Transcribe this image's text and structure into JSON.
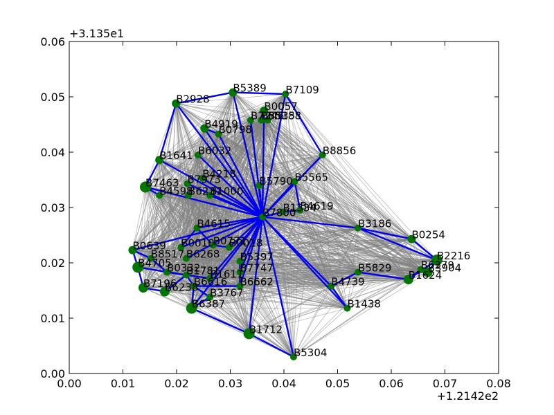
{
  "chart_data": {
    "type": "scatter",
    "x_offset_label": "+1.2142e2",
    "y_offset_label": "+3.135e1",
    "xlim": [
      0.0,
      0.08
    ],
    "ylim": [
      0.0,
      0.06
    ],
    "x_ticks": [
      "0.00",
      "0.01",
      "0.02",
      "0.03",
      "0.04",
      "0.05",
      "0.06",
      "0.07",
      "0.08"
    ],
    "y_ticks": [
      "0.00",
      "0.01",
      "0.02",
      "0.03",
      "0.04",
      "0.05",
      "0.06"
    ],
    "x_tick_values": [
      0.0,
      0.01,
      0.02,
      0.03,
      0.04,
      0.05,
      0.06,
      0.07,
      0.08
    ],
    "y_tick_values": [
      0.0,
      0.01,
      0.02,
      0.03,
      0.04,
      0.05,
      0.06
    ],
    "grid": false,
    "colors": {
      "nodes": "#007700",
      "route": "#0000ee",
      "background_edges": "#808080"
    },
    "hub": "B7800",
    "nodes": [
      {
        "id": "B5389",
        "x": 0.0305,
        "y": 0.0508,
        "size": 6
      },
      {
        "id": "B7109",
        "x": 0.0403,
        "y": 0.0505,
        "size": 5
      },
      {
        "id": "B2928",
        "x": 0.0199,
        "y": 0.0488,
        "size": 6
      },
      {
        "id": "B0057",
        "x": 0.0363,
        "y": 0.0475,
        "size": 6
      },
      {
        "id": "B7246",
        "x": 0.0338,
        "y": 0.0458,
        "size": 5
      },
      {
        "id": "B5535",
        "x": 0.0358,
        "y": 0.0458,
        "size": 5
      },
      {
        "id": "B5188",
        "x": 0.037,
        "y": 0.0458,
        "size": 5
      },
      {
        "id": "B4919",
        "x": 0.0252,
        "y": 0.0443,
        "size": 6
      },
      {
        "id": "B0798",
        "x": 0.0278,
        "y": 0.0433,
        "size": 5
      },
      {
        "id": "B8856",
        "x": 0.0472,
        "y": 0.0395,
        "size": 5
      },
      {
        "id": "B6032",
        "x": 0.024,
        "y": 0.0395,
        "size": 5
      },
      {
        "id": "B1641",
        "x": 0.0168,
        "y": 0.0386,
        "size": 6
      },
      {
        "id": "B4218",
        "x": 0.0248,
        "y": 0.0353,
        "size": 5
      },
      {
        "id": "B7973",
        "x": 0.022,
        "y": 0.0343,
        "size": 5
      },
      {
        "id": "B5565",
        "x": 0.042,
        "y": 0.0347,
        "size": 5
      },
      {
        "id": "B5790",
        "x": 0.0354,
        "y": 0.034,
        "size": 5
      },
      {
        "id": "B7463",
        "x": 0.0142,
        "y": 0.0337,
        "size": 8
      },
      {
        "id": "B6237",
        "x": 0.0222,
        "y": 0.0322,
        "size": 5
      },
      {
        "id": "B1000",
        "x": 0.0262,
        "y": 0.0322,
        "size": 5
      },
      {
        "id": "B4598",
        "x": 0.0168,
        "y": 0.0322,
        "size": 5
      },
      {
        "id": "B4619",
        "x": 0.043,
        "y": 0.0295,
        "size": 5
      },
      {
        "id": "B1334",
        "x": 0.0398,
        "y": 0.0292,
        "size": 5
      },
      {
        "id": "B7800",
        "x": 0.036,
        "y": 0.0283,
        "size": 5
      },
      {
        "id": "B3186",
        "x": 0.0538,
        "y": 0.0263,
        "size": 5
      },
      {
        "id": "B4615",
        "x": 0.0238,
        "y": 0.0263,
        "size": 5
      },
      {
        "id": "B0254",
        "x": 0.0638,
        "y": 0.0243,
        "size": 6
      },
      {
        "id": "B0639",
        "x": 0.0118,
        "y": 0.0223,
        "size": 6
      },
      {
        "id": "B0010",
        "x": 0.0208,
        "y": 0.0228,
        "size": 5
      },
      {
        "id": "B0771",
        "x": 0.0268,
        "y": 0.0232,
        "size": 5
      },
      {
        "id": "B0018",
        "x": 0.0298,
        "y": 0.0228,
        "size": 5
      },
      {
        "id": "B8517",
        "x": 0.0152,
        "y": 0.0208,
        "size": 5
      },
      {
        "id": "B6268",
        "x": 0.0218,
        "y": 0.0208,
        "size": 5
      },
      {
        "id": "B5397",
        "x": 0.0318,
        "y": 0.0203,
        "size": 5
      },
      {
        "id": "B2216",
        "x": 0.0685,
        "y": 0.0205,
        "size": 8
      },
      {
        "id": "B4705",
        "x": 0.0128,
        "y": 0.0192,
        "size": 8
      },
      {
        "id": "B6279",
        "x": 0.0655,
        "y": 0.0188,
        "size": 5
      },
      {
        "id": "B3904",
        "x": 0.0668,
        "y": 0.0183,
        "size": 7
      },
      {
        "id": "B5829",
        "x": 0.0538,
        "y": 0.0183,
        "size": 5
      },
      {
        "id": "B0332",
        "x": 0.0182,
        "y": 0.0183,
        "size": 5
      },
      {
        "id": "B1781",
        "x": 0.0218,
        "y": 0.0178,
        "size": 5
      },
      {
        "id": "B7747",
        "x": 0.0318,
        "y": 0.0183,
        "size": 5
      },
      {
        "id": "B1611",
        "x": 0.0262,
        "y": 0.0172,
        "size": 5
      },
      {
        "id": "B1624",
        "x": 0.0632,
        "y": 0.017,
        "size": 7
      },
      {
        "id": "B4739",
        "x": 0.0488,
        "y": 0.0158,
        "size": 5
      },
      {
        "id": "B7196",
        "x": 0.0138,
        "y": 0.0155,
        "size": 7
      },
      {
        "id": "B6616",
        "x": 0.0232,
        "y": 0.0158,
        "size": 5
      },
      {
        "id": "B6662",
        "x": 0.0318,
        "y": 0.0158,
        "size": 5
      },
      {
        "id": "B6238",
        "x": 0.0178,
        "y": 0.0148,
        "size": 7
      },
      {
        "id": "B3767",
        "x": 0.0262,
        "y": 0.0138,
        "size": 5
      },
      {
        "id": "B6387",
        "x": 0.0228,
        "y": 0.0118,
        "size": 8
      },
      {
        "id": "B1438",
        "x": 0.0518,
        "y": 0.0118,
        "size": 5
      },
      {
        "id": "B1712",
        "x": 0.0335,
        "y": 0.0072,
        "size": 8
      },
      {
        "id": "B5304",
        "x": 0.0418,
        "y": 0.003,
        "size": 5
      }
    ],
    "route_edges": [
      [
        "B7800",
        "B5389"
      ],
      [
        "B7800",
        "B7109"
      ],
      [
        "B7800",
        "B2928"
      ],
      [
        "B7800",
        "B0057"
      ],
      [
        "B7800",
        "B7246"
      ],
      [
        "B7800",
        "B4919"
      ],
      [
        "B7800",
        "B0798"
      ],
      [
        "B7800",
        "B8856"
      ],
      [
        "B7800",
        "B6032"
      ],
      [
        "B7800",
        "B1641"
      ],
      [
        "B7800",
        "B4218"
      ],
      [
        "B7800",
        "B7973"
      ],
      [
        "B7800",
        "B7463"
      ],
      [
        "B7800",
        "B1000"
      ],
      [
        "B7800",
        "B5565"
      ],
      [
        "B7800",
        "B5790"
      ],
      [
        "B7800",
        "B1334"
      ],
      [
        "B7800",
        "B3186"
      ],
      [
        "B7800",
        "B4615"
      ],
      [
        "B7800",
        "B0639"
      ],
      [
        "B7800",
        "B0018"
      ],
      [
        "B7800",
        "B5397"
      ],
      [
        "B7800",
        "B7747"
      ],
      [
        "B7800",
        "B6662"
      ],
      [
        "B7800",
        "B1611"
      ],
      [
        "B7800",
        "B4739"
      ],
      [
        "B7800",
        "B1438"
      ],
      [
        "B7800",
        "B1712"
      ],
      [
        "B7800",
        "B5304"
      ],
      [
        "B7800",
        "B6387"
      ],
      [
        "B7800",
        "B0010"
      ],
      [
        "B7800",
        "B6268"
      ],
      [
        "B2928",
        "B5389"
      ],
      [
        "B5389",
        "B7109"
      ],
      [
        "B7109",
        "B8856"
      ],
      [
        "B2928",
        "B1641"
      ],
      [
        "B4919",
        "B0798"
      ],
      [
        "B0057",
        "B5535"
      ],
      [
        "B5565",
        "B4619"
      ],
      [
        "B1334",
        "B4619"
      ],
      [
        "B3186",
        "B0254"
      ],
      [
        "B0254",
        "B2216"
      ],
      [
        "B3186",
        "B2216"
      ],
      [
        "B2216",
        "B3904"
      ],
      [
        "B2216",
        "B1624"
      ],
      [
        "B5829",
        "B1624"
      ],
      [
        "B5829",
        "B4739"
      ],
      [
        "B4739",
        "B1438"
      ],
      [
        "B1624",
        "B6279"
      ],
      [
        "B7463",
        "B4598"
      ],
      [
        "B7463",
        "B1641"
      ],
      [
        "B0639",
        "B4705"
      ],
      [
        "B4705",
        "B7196"
      ],
      [
        "B7196",
        "B6238"
      ],
      [
        "B6238",
        "B1781"
      ],
      [
        "B0639",
        "B8517"
      ],
      [
        "B8517",
        "B0332"
      ],
      [
        "B0332",
        "B1611"
      ],
      [
        "B6616",
        "B6662"
      ],
      [
        "B6616",
        "B3767"
      ],
      [
        "B3767",
        "B6387"
      ],
      [
        "B6616",
        "B1781"
      ],
      [
        "B4615",
        "B0771"
      ],
      [
        "B4615",
        "B0010"
      ],
      [
        "B1712",
        "B6387"
      ],
      [
        "B1712",
        "B5304"
      ],
      [
        "B6662",
        "B5397"
      ],
      [
        "B4705",
        "B1781"
      ],
      [
        "B6387",
        "B6616"
      ],
      [
        "B0018",
        "B0771"
      ]
    ]
  }
}
